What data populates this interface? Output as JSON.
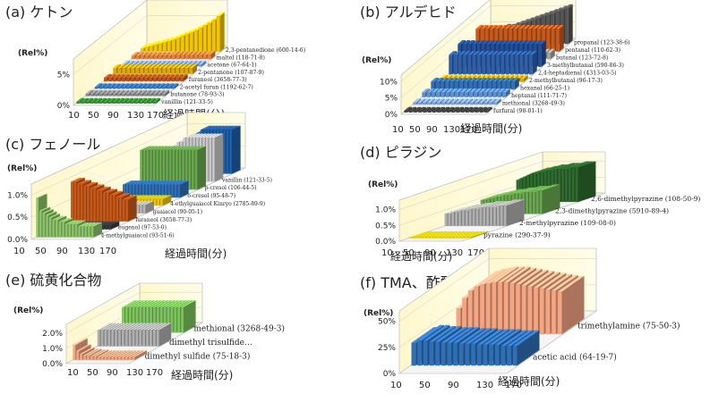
{
  "chart_data": [
    {
      "panel_id": "a",
      "type": "bar",
      "subtype": "3d-bar",
      "title": "(a) ケトン",
      "ylabel": "(Rel%)",
      "xlabel": "経過時間(分)",
      "ylim": [
        0,
        7.5
      ],
      "yticks": [
        "0%",
        "5%"
      ],
      "ytick_values": [
        0,
        5
      ],
      "xticks": [
        "10",
        "50",
        "90",
        "130",
        "170"
      ],
      "series": [
        {
          "name": "vanillin (121-33-5)",
          "color": "#2e8b2e",
          "values": [
            0.3,
            0.3,
            0.3,
            0.3,
            0.3,
            0.3,
            0.3,
            0.3,
            0.3,
            0.3,
            0.3,
            0.3,
            0.3,
            0.3,
            0.3,
            0.3,
            0.3,
            0.3
          ]
        },
        {
          "name": "butanone (78-93-3)",
          "color": "#8a8a8a",
          "values": [
            0.4,
            0.4,
            0.4,
            0.4,
            0.4,
            0.4,
            0.4,
            0.4,
            0.4,
            0.4,
            0.4,
            0.4,
            0.4,
            0.4,
            0.4,
            0.4,
            0.4,
            0.4
          ]
        },
        {
          "name": "2-acetyl furan (1192-62-7)",
          "color": "#2f6fb5",
          "values": [
            0.3,
            0.3,
            0.3,
            0.3,
            0.3,
            0.3,
            0.3,
            0.3,
            0.3,
            0.3,
            0.3,
            0.3,
            0.3,
            0.3,
            0.3,
            0.3,
            0.3,
            0.3
          ]
        },
        {
          "name": "furaneol (3658-77-3)",
          "color": "#b8541c",
          "values": [
            0.6,
            0.6,
            0.6,
            0.6,
            0.6,
            0.6,
            0.6,
            0.6,
            0.6,
            0.6,
            0.6,
            0.6,
            0.6,
            0.6,
            0.6,
            0.6,
            0.6,
            0.6
          ]
        },
        {
          "name": "2-pentanone (107-87-9)",
          "color": "#e0a800",
          "values": [
            1.0,
            1.0,
            1.0,
            1.0,
            1.0,
            1.0,
            1.0,
            1.0,
            1.0,
            1.0,
            1.0,
            1.0,
            1.0,
            1.0,
            1.0,
            1.0,
            1.0,
            1.0
          ]
        },
        {
          "name": "acetone (67-64-1)",
          "color": "#7fa3d6",
          "values": [
            0.4,
            0.4,
            0.4,
            0.4,
            0.4,
            0.4,
            0.4,
            0.4,
            0.4,
            0.4,
            0.4,
            0.4,
            0.4,
            0.4,
            0.4,
            0.4,
            0.4,
            0.4
          ]
        },
        {
          "name": "maltol (118-71-8)",
          "color": "#e8823a",
          "values": [
            0.6,
            0.6,
            0.6,
            0.6,
            0.6,
            0.6,
            0.6,
            0.6,
            0.6,
            0.7,
            0.7,
            0.7,
            0.7,
            0.7,
            0.7,
            0.7,
            0.7,
            0.8
          ]
        },
        {
          "name": "2,3-pentanedione (600-14-6)",
          "color": "#f2c500",
          "values": [
            0.6,
            0.8,
            1.0,
            1.2,
            1.4,
            1.6,
            1.8,
            2.0,
            2.3,
            2.6,
            2.9,
            3.2,
            3.5,
            3.9,
            4.3,
            4.7,
            5.2,
            5.8
          ]
        }
      ]
    },
    {
      "panel_id": "b",
      "type": "bar",
      "subtype": "3d-bar",
      "title": "(b) アルデヒド",
      "ylabel": "(Rel%)",
      "xlabel": "経過時間(分)",
      "ylim": [
        0,
        12
      ],
      "yticks": [
        "0%",
        "5%",
        "10%"
      ],
      "ytick_values": [
        0,
        5,
        10
      ],
      "xticks": [
        "10",
        "50",
        "90",
        "130",
        "170"
      ],
      "series": [
        {
          "name": "furfural (98-01-1)",
          "color": "#3a3a3a",
          "values": [
            0.5,
            0.5,
            0.5,
            0.5,
            0.5,
            0.5,
            0.5,
            0.5,
            0.5,
            0.5,
            0.5,
            0.5,
            0.5,
            0.5,
            0.5,
            0.5,
            0.5,
            0.5
          ]
        },
        {
          "name": "methional (3268-49-3)",
          "color": "#7fa3d6",
          "values": [
            0.8,
            0.8,
            0.8,
            0.8,
            0.8,
            0.8,
            0.8,
            0.8,
            0.8,
            0.8,
            0.8,
            0.8,
            0.8,
            0.8,
            0.8,
            0.8,
            0.8,
            0.8
          ]
        },
        {
          "name": "heptanal (111-71-7)",
          "color": "#5a8fd0",
          "values": [
            1.5,
            1.5,
            1.5,
            1.5,
            1.5,
            1.5,
            1.5,
            1.5,
            1.5,
            1.5,
            1.5,
            1.5,
            1.5,
            1.5,
            1.5,
            1.5,
            1.5,
            1.5
          ]
        },
        {
          "name": "hexanal (66-25-1)",
          "color": "#2f6fb5",
          "values": [
            2.5,
            2.5,
            2.5,
            2.5,
            2.5,
            2.5,
            2.5,
            2.5,
            2.5,
            2.5,
            2.5,
            2.5,
            2.5,
            2.5,
            2.5,
            2.5,
            2.5,
            2.5
          ]
        },
        {
          "name": "2-methylbutanal (96-17-3)",
          "color": "#e0a800",
          "values": [
            1.0,
            1.0,
            1.0,
            1.0,
            1.0,
            1.0,
            1.0,
            1.0,
            1.0,
            1.0,
            1.0,
            1.0,
            1.0,
            1.0,
            1.0,
            1.0,
            1.0,
            1.0
          ]
        },
        {
          "name": "2,4-heptadienal (4313-03-5)",
          "color": "#2e5fa8",
          "values": [
            6,
            6,
            6,
            6,
            6,
            6,
            6,
            6,
            6,
            6,
            6,
            6,
            6,
            6,
            6,
            6,
            6,
            6
          ]
        },
        {
          "name": "3-methylbutanal (590-86-3)",
          "color": "#1f4f9a",
          "values": [
            7,
            7,
            7,
            7,
            7,
            7,
            7,
            7,
            7,
            7,
            7,
            7,
            7,
            7,
            7,
            7,
            7,
            7
          ]
        },
        {
          "name": "butanal (123-72-8)",
          "color": "#a0a0a0",
          "values": [
            2,
            2,
            2,
            2,
            2,
            2,
            2,
            2,
            2,
            2,
            2,
            2,
            2,
            2,
            2,
            2,
            2,
            2
          ]
        },
        {
          "name": "pentanal (110-62-3)",
          "color": "#c75a1a",
          "values": [
            7,
            7,
            7,
            7,
            7,
            7,
            7,
            7,
            7,
            7,
            7,
            7,
            7,
            7,
            7,
            7,
            7,
            7
          ]
        },
        {
          "name": "propanal (123-38-6)",
          "color": "#555555",
          "values": [
            4,
            4,
            4.5,
            4.5,
            5,
            5,
            5.5,
            6,
            6.5,
            7,
            7.5,
            8,
            8.5,
            9,
            9.5,
            10,
            10.5,
            11
          ]
        }
      ]
    },
    {
      "panel_id": "c",
      "type": "bar",
      "subtype": "3d-bar",
      "title": "(c) フェノール",
      "ylabel": "(Rel%)",
      "xlabel": "経過時間(分)",
      "ylim": [
        0,
        1.25
      ],
      "yticks": [
        "0.0%",
        "0.5%",
        "1.0%"
      ],
      "ytick_values": [
        0,
        0.5,
        1.0
      ],
      "xticks": [
        "10",
        "50",
        "90",
        "130",
        "170"
      ],
      "series": [
        {
          "name": "4-methylguaiacol (93-51-6)",
          "color": "#8cc36a",
          "values": [
            0.9,
            0.6,
            0.55,
            0.5,
            0.45,
            0.4,
            0.4,
            0.35,
            0.35,
            0.3,
            0.3,
            0.3,
            0.3,
            0.25,
            0.25,
            0.25,
            0.25,
            0.25
          ]
        },
        {
          "name": "eugenol (97-53-0)",
          "color": "#3a3a3a",
          "values": [
            0.1,
            0.1,
            0.1,
            0.1,
            0.1,
            0.1,
            0.1,
            0.1,
            0.1,
            0.1,
            0.1,
            0.1,
            0.1,
            0.1,
            0.1,
            0.1,
            0.1,
            0.1
          ]
        },
        {
          "name": "furaneol (3658-77-3)",
          "color": "#c75a1a",
          "values": [
            0.9,
            0.9,
            0.85,
            0.85,
            0.8,
            0.8,
            0.75,
            0.75,
            0.7,
            0.7,
            0.65,
            0.65,
            0.6,
            0.6,
            0.55,
            0.55,
            0.5,
            0.5
          ]
        },
        {
          "name": "guaiacol (90-05-1)",
          "color": "#b8b8b8",
          "values": [
            0.2,
            0.2,
            0.2,
            0.2,
            0.2,
            0.2,
            0.2,
            0.2,
            0.2,
            0.2,
            0.2,
            0.2,
            0.2,
            0.2,
            0.2,
            0.2,
            0.2,
            0.2
          ]
        },
        {
          "name": "4-ethylguaiacol Kinryo (2785-89-9)",
          "color": "#f2c500",
          "values": [
            0.15,
            0.15,
            0.15,
            0.15,
            0.15,
            0.15,
            0.15,
            0.15,
            0.15,
            0.15,
            0.15,
            0.15,
            0.15,
            0.15,
            0.15,
            0.15,
            0.15,
            0.15
          ]
        },
        {
          "name": "o-cresol (95-48-7)",
          "color": "#2f6fb5",
          "values": [
            0.3,
            0.3,
            0.3,
            0.3,
            0.3,
            0.3,
            0.3,
            0.3,
            0.3,
            0.3,
            0.3,
            0.3,
            0.3,
            0.3,
            0.3,
            0.3,
            0.3,
            0.3
          ]
        },
        {
          "name": "p-cresol (106-44-5)",
          "color": "#6aa84f",
          "values": [
            0.9,
            0.9,
            0.9,
            0.9,
            0.9,
            0.9,
            0.9,
            0.9,
            0.9,
            0.9,
            0.9,
            0.9,
            0.9,
            0.9,
            0.9,
            0.9,
            0.9,
            0.9
          ]
        },
        {
          "name": "vanillin (121-33-5)",
          "color": "#c8c8c8",
          "values": [
            0.6,
            0.6,
            0.7,
            0.7,
            0.8,
            0.8,
            0.9,
            0.9,
            1.0,
            1.0,
            1.0,
            1.0,
            1.0,
            1.0,
            1.0,
            1.0,
            1.0,
            1.0
          ]
        },
        {
          "name": "",
          "color": "#1f5fa8",
          "values": [
            0.6,
            0.6,
            0.7,
            0.7,
            0.8,
            0.8,
            0.9,
            0.9,
            1.0,
            1.0,
            1.0,
            1.0,
            1.0,
            1.0,
            1.0,
            1.0,
            1.0,
            1.0
          ]
        }
      ]
    },
    {
      "panel_id": "d",
      "type": "bar",
      "subtype": "3d-bar",
      "title": "(d) ピラジン",
      "ylabel": "(Rel%)",
      "xlabel": "経過時間(分)",
      "ylim": [
        0,
        1.3
      ],
      "yticks": [
        "0.0%",
        "0.5%",
        "1.0%"
      ],
      "ytick_values": [
        0,
        0.5,
        1.0
      ],
      "xticks": [
        "10",
        "50",
        "90",
        "130",
        "170"
      ],
      "series": [
        {
          "name": "pyrazine (290-37-9)",
          "color": "#f2c500",
          "values": [
            0.03,
            0.03,
            0.03,
            0.03,
            0.03,
            0.03,
            0.03,
            0.03,
            0.03,
            0.03,
            0.03,
            0.03,
            0.03,
            0.03,
            0.03,
            0.03,
            0.03,
            0.03
          ]
        },
        {
          "name": "2-methylpyrazine (109-08-0)",
          "color": "#b0b0b0",
          "values": [
            0.4,
            0.4,
            0.45,
            0.45,
            0.5,
            0.5,
            0.5,
            0.55,
            0.55,
            0.55,
            0.6,
            0.6,
            0.6,
            0.6,
            0.6,
            0.65,
            0.65,
            0.65
          ]
        },
        {
          "name": "2,3-dimethylpyrazine (5910-89-4)",
          "color": "#6aa84f",
          "values": [
            0.45,
            0.45,
            0.5,
            0.5,
            0.55,
            0.55,
            0.6,
            0.6,
            0.6,
            0.65,
            0.65,
            0.65,
            0.7,
            0.7,
            0.7,
            0.7,
            0.75,
            0.75
          ]
        },
        {
          "name": "2,6-dimethylpyrazine (108-50-9)",
          "color": "#2e6b2e",
          "values": [
            0.7,
            0.75,
            0.8,
            0.85,
            0.9,
            0.9,
            0.95,
            0.95,
            1.0,
            1.0,
            1.0,
            1.05,
            1.05,
            1.05,
            1.05,
            1.1,
            1.1,
            1.1
          ]
        }
      ]
    },
    {
      "panel_id": "e",
      "type": "bar",
      "subtype": "3d-bar",
      "title": "(e) 硫黄化合物",
      "ylabel": "(Rel%)",
      "xlabel": "経過時間(分)",
      "ylim": [
        0,
        2.6
      ],
      "yticks": [
        "0.0%",
        "1.0%",
        "2.0%"
      ],
      "ytick_values": [
        0,
        1.0,
        2.0
      ],
      "xticks": [
        "10",
        "50",
        "90",
        "130",
        "170"
      ],
      "series": [
        {
          "name": "dimethyl sulfide (75-18-3)",
          "color": "#f4a582",
          "values": [
            1.0,
            0.6,
            0.4,
            0.3,
            0.3,
            0.25,
            0.25,
            0.2,
            0.2,
            0.2,
            0.2,
            0.2,
            0.2,
            0.2,
            0.2,
            0.2,
            0.2,
            0.2
          ]
        },
        {
          "name": "dimethyl trisulfide…",
          "color": "#b0b0b0",
          "values": [
            1.1,
            1.1,
            1.1,
            1.1,
            1.1,
            1.1,
            1.1,
            1.1,
            1.1,
            1.1,
            1.1,
            1.1,
            1.1,
            1.1,
            1.1,
            1.1,
            1.1,
            1.1
          ]
        },
        {
          "name": "methional (3268-49-3)",
          "color": "#7dc45e",
          "values": [
            1.7,
            1.7,
            1.7,
            1.7,
            1.7,
            1.7,
            1.7,
            1.7,
            1.7,
            1.7,
            1.7,
            1.7,
            1.7,
            1.7,
            1.7,
            1.7,
            1.7,
            1.7
          ]
        }
      ]
    },
    {
      "panel_id": "f",
      "type": "bar",
      "subtype": "3d-bar",
      "title": "(f) TMA、酢酸",
      "ylabel": "(Rel%)",
      "xlabel": "経過時間(分)",
      "ylim": [
        0,
        60
      ],
      "yticks": [
        "0%",
        "25%",
        "50%"
      ],
      "ytick_values": [
        0,
        25,
        50
      ],
      "xticks": [
        "10",
        "50",
        "90",
        "130",
        "170"
      ],
      "series": [
        {
          "name": "acetic acid (64-19-7)",
          "color": "#2f6fb5",
          "values": [
            22,
            24,
            24,
            23,
            23,
            22,
            22,
            22,
            21,
            21,
            21,
            20,
            20,
            20,
            20,
            19,
            19,
            19
          ]
        },
        {
          "name": "trimethylamine (75-50-3)",
          "color": "#f4a582",
          "values": [
            25,
            35,
            42,
            46,
            48,
            49,
            50,
            50,
            50,
            49,
            48,
            47,
            46,
            45,
            44,
            43,
            42,
            41
          ]
        }
      ]
    }
  ]
}
